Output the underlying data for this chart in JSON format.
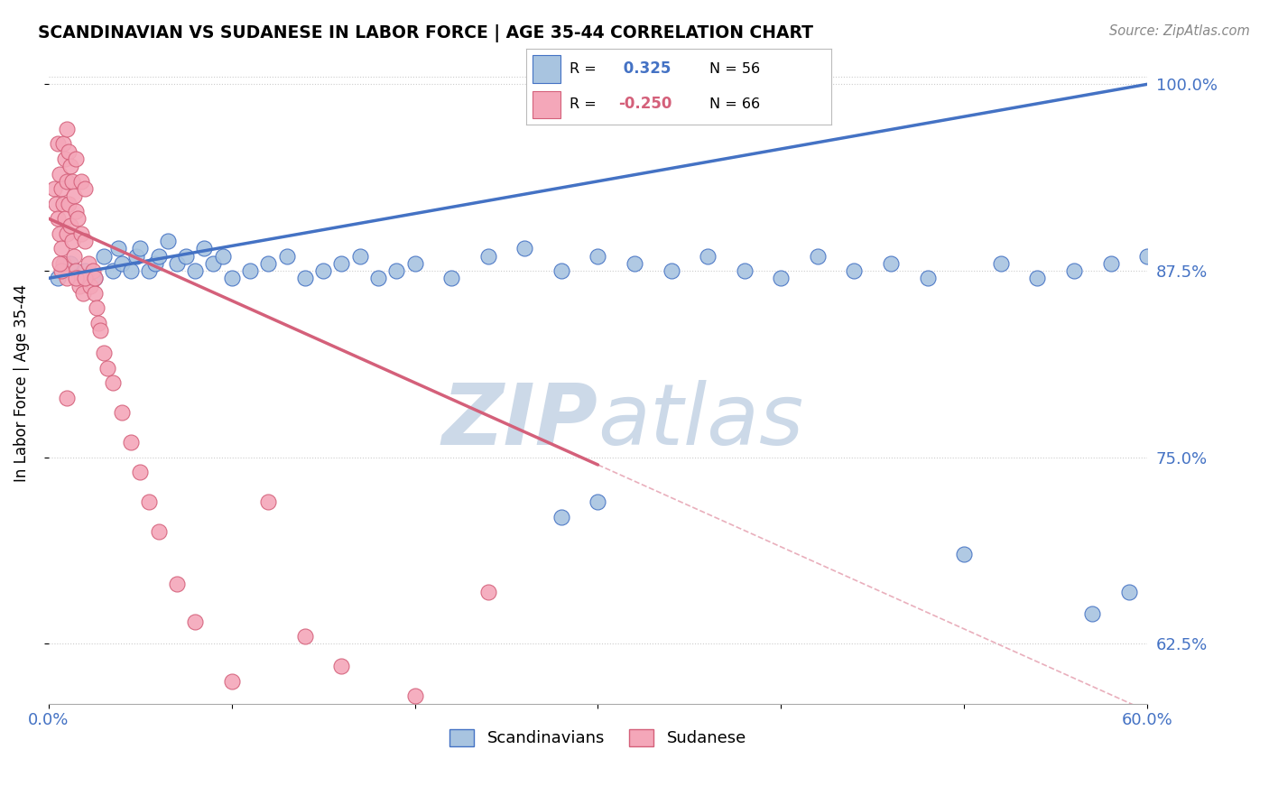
{
  "title": "SCANDINAVIAN VS SUDANESE IN LABOR FORCE | AGE 35-44 CORRELATION CHART",
  "source_text": "Source: ZipAtlas.com",
  "xlabel_scandinavian": "Scandinavians",
  "xlabel_sudanese": "Sudanese",
  "ylabel": "In Labor Force | Age 35-44",
  "r_scandinavian": 0.325,
  "n_scandinavian": 56,
  "r_sudanese": -0.25,
  "n_sudanese": 66,
  "xmin": 0.0,
  "xmax": 0.6,
  "ymin": 0.585,
  "ymax": 1.015,
  "yticks": [
    0.625,
    0.75,
    0.875,
    1.0
  ],
  "ytick_labels": [
    "62.5%",
    "75.0%",
    "87.5%",
    "100.0%"
  ],
  "color_scandinavian": "#a8c4e0",
  "color_scandinavian_line": "#4472c4",
  "color_sudanese": "#f4a7b9",
  "color_sudanese_line": "#d4607a",
  "watermark_zip": "ZIP",
  "watermark_atlas": "atlas",
  "watermark_color": "#ccd9e8",
  "legend_r_color_scandinavian": "#4472c4",
  "legend_r_color_sudanese": "#d4607a",
  "scan_line_y0": 0.87,
  "scan_line_y1": 1.0,
  "sud_line_y0": 0.91,
  "sud_line_y1": 0.745,
  "sud_line_x1": 0.3,
  "scan_pts_x": [
    0.005,
    0.012,
    0.02,
    0.025,
    0.03,
    0.035,
    0.038,
    0.04,
    0.045,
    0.048,
    0.05,
    0.055,
    0.058,
    0.06,
    0.065,
    0.07,
    0.075,
    0.08,
    0.085,
    0.09,
    0.095,
    0.1,
    0.11,
    0.12,
    0.13,
    0.14,
    0.15,
    0.16,
    0.17,
    0.18,
    0.19,
    0.2,
    0.22,
    0.24,
    0.26,
    0.28,
    0.3,
    0.32,
    0.34,
    0.36,
    0.28,
    0.3,
    0.38,
    0.4,
    0.42,
    0.44,
    0.46,
    0.48,
    0.5,
    0.52,
    0.54,
    0.56,
    0.58,
    0.6,
    0.59,
    0.57
  ],
  "scan_pts_y": [
    0.87,
    0.88,
    0.875,
    0.87,
    0.885,
    0.875,
    0.89,
    0.88,
    0.875,
    0.885,
    0.89,
    0.875,
    0.88,
    0.885,
    0.895,
    0.88,
    0.885,
    0.875,
    0.89,
    0.88,
    0.885,
    0.87,
    0.875,
    0.88,
    0.885,
    0.87,
    0.875,
    0.88,
    0.885,
    0.87,
    0.875,
    0.88,
    0.87,
    0.885,
    0.89,
    0.875,
    0.885,
    0.88,
    0.875,
    0.885,
    0.71,
    0.72,
    0.875,
    0.87,
    0.885,
    0.875,
    0.88,
    0.87,
    0.685,
    0.88,
    0.87,
    0.875,
    0.88,
    0.885,
    0.66,
    0.645
  ],
  "sud_pts_x": [
    0.003,
    0.004,
    0.005,
    0.005,
    0.006,
    0.006,
    0.007,
    0.007,
    0.008,
    0.008,
    0.008,
    0.009,
    0.009,
    0.01,
    0.01,
    0.01,
    0.011,
    0.011,
    0.012,
    0.012,
    0.013,
    0.013,
    0.014,
    0.014,
    0.015,
    0.015,
    0.015,
    0.016,
    0.016,
    0.017,
    0.018,
    0.018,
    0.019,
    0.02,
    0.02,
    0.021,
    0.022,
    0.023,
    0.024,
    0.025,
    0.026,
    0.027,
    0.028,
    0.03,
    0.032,
    0.035,
    0.04,
    0.045,
    0.05,
    0.055,
    0.06,
    0.07,
    0.08,
    0.1,
    0.12,
    0.14,
    0.16,
    0.2,
    0.24,
    0.01,
    0.015,
    0.02,
    0.025,
    0.01,
    0.007,
    0.006
  ],
  "sud_pts_y": [
    0.93,
    0.92,
    0.91,
    0.96,
    0.9,
    0.94,
    0.89,
    0.93,
    0.88,
    0.92,
    0.96,
    0.91,
    0.95,
    0.9,
    0.935,
    0.97,
    0.92,
    0.955,
    0.905,
    0.945,
    0.895,
    0.935,
    0.885,
    0.925,
    0.875,
    0.915,
    0.95,
    0.87,
    0.91,
    0.865,
    0.9,
    0.935,
    0.86,
    0.895,
    0.93,
    0.87,
    0.88,
    0.865,
    0.875,
    0.86,
    0.85,
    0.84,
    0.835,
    0.82,
    0.81,
    0.8,
    0.78,
    0.76,
    0.74,
    0.72,
    0.7,
    0.665,
    0.64,
    0.6,
    0.72,
    0.63,
    0.61,
    0.59,
    0.66,
    0.87,
    0.87,
    0.87,
    0.87,
    0.79,
    0.875,
    0.88
  ]
}
